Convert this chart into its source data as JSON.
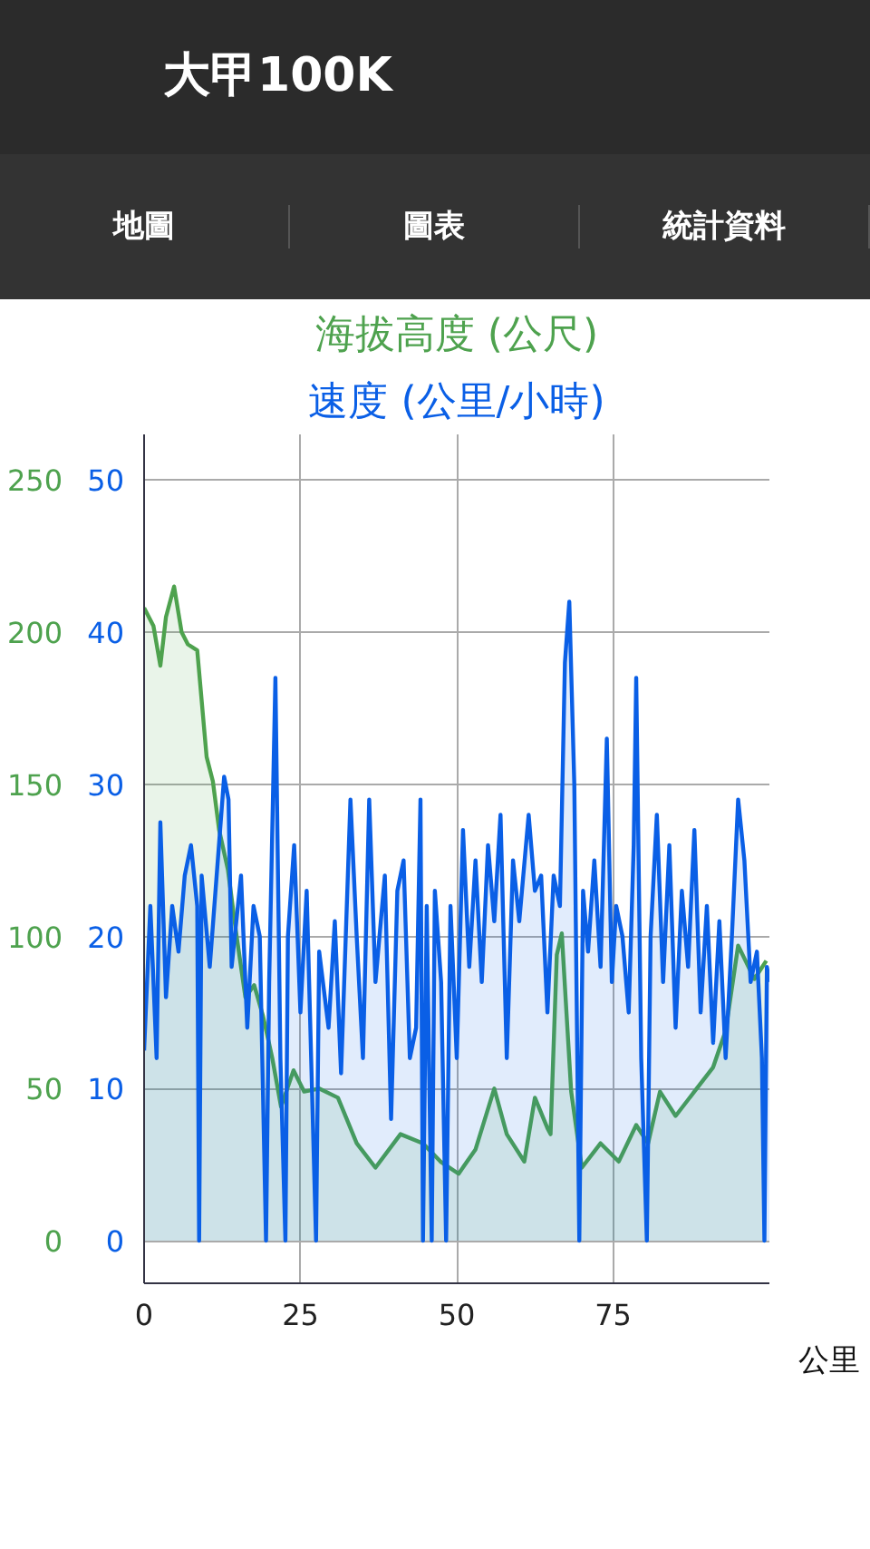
{
  "chart_data": {
    "type": "area",
    "title": "海拔高度 (公尺)",
    "subtitle": "速度 (公里/小時)",
    "annotations": [
      "大甲100K",
      "地圖",
      "圖表",
      "統計資料"
    ],
    "xlabel": "公里",
    "xlim": [
      0,
      100
    ],
    "xticks": [
      0,
      25,
      50,
      75
    ],
    "ylim": [
      -14,
      265
    ],
    "yticks": [
      0,
      50,
      100,
      150,
      200,
      250
    ],
    "y2lim": [
      -2.8,
      53
    ],
    "y2ticks": [
      0,
      10,
      20,
      30,
      40,
      50
    ],
    "grid": true,
    "series": [
      {
        "color": "#4ea24e",
        "x": [
          0,
          1.5,
          2.6,
          3.5,
          4.8,
          6,
          7,
          8.5,
          10,
          11,
          12,
          13.4,
          14.8,
          16.2,
          17.6,
          19,
          20.5,
          21.9,
          23.9,
          25.6,
          28,
          31,
          34,
          37,
          41,
          44.6,
          47.4,
          50.3,
          53,
          56,
          58,
          60.8,
          62.5,
          64.5,
          65,
          66,
          66.8,
          67.4,
          68.3,
          70,
          73,
          75.9,
          78.7,
          80.6,
          82.5,
          85,
          88,
          91,
          93,
          95,
          97.6,
          99.5
        ],
        "values": [
          208,
          202,
          189,
          205,
          215,
          200,
          196,
          194,
          159,
          151,
          135,
          122,
          100,
          80,
          84,
          74,
          60,
          44,
          56,
          49,
          50,
          47,
          32,
          24,
          35,
          32,
          26,
          22,
          30,
          50,
          35,
          26,
          47,
          37,
          35,
          94,
          101,
          80,
          49,
          24,
          32,
          26,
          38,
          32,
          49,
          41,
          49,
          57,
          69,
          97,
          86,
          92
        ]
      },
      {
        "axis": "y2",
        "color": "#0a5fe6",
        "x": [
          0,
          1,
          2,
          2.6,
          3.5,
          4.5,
          5.5,
          6.5,
          7.5,
          8.5,
          8.8,
          9.2,
          10.5,
          12.8,
          13.5,
          14,
          15.5,
          16.5,
          17.5,
          18.5,
          19.5,
          20,
          21,
          21.8,
          22.6,
          23,
          24,
          25,
          26,
          27.5,
          28,
          29.5,
          30.5,
          31.5,
          33,
          34,
          35,
          36,
          37,
          38.5,
          39.5,
          40.5,
          41.5,
          42.5,
          43.5,
          44.2,
          44.6,
          45.2,
          46,
          46.5,
          47.5,
          48.3,
          49,
          50,
          51,
          52,
          53,
          54,
          55,
          56,
          57,
          58,
          59,
          60,
          61.5,
          62.5,
          63.5,
          64.5,
          65.5,
          66.5,
          67.3,
          68,
          68.8,
          69.6,
          70.2,
          71,
          72,
          73,
          74,
          74.8,
          75.5,
          76.5,
          77.5,
          78.3,
          78.7,
          79.5,
          80.4,
          81,
          82,
          83,
          84,
          85,
          86,
          87,
          88,
          89,
          90,
          91,
          92,
          93,
          94,
          95,
          96,
          97,
          98,
          98.8,
          99.2,
          99.6,
          100
        ],
        "values": [
          12.5,
          22,
          12,
          27.5,
          16,
          22,
          19,
          24,
          26,
          22,
          0,
          24,
          18,
          30.5,
          29,
          18,
          24,
          14,
          22,
          20,
          0,
          17,
          37,
          12,
          0,
          20,
          26,
          15,
          23,
          0,
          19,
          14,
          21,
          11,
          29,
          20,
          12,
          29,
          17,
          24,
          8,
          23,
          25,
          12,
          14,
          29,
          0,
          22,
          0,
          23,
          17,
          0,
          22,
          12,
          27,
          18,
          25,
          17,
          26,
          21,
          28,
          12,
          25,
          21,
          28,
          23,
          24,
          15,
          24,
          22,
          38,
          42,
          30,
          0,
          23,
          19,
          25,
          18,
          33,
          17,
          22,
          20,
          15,
          26,
          37,
          12,
          0,
          20,
          28,
          17,
          26,
          14,
          23,
          18,
          27,
          15,
          22,
          13,
          21,
          12,
          20,
          29,
          25,
          17,
          19,
          12,
          0,
          18,
          17
        ]
      }
    ]
  }
}
